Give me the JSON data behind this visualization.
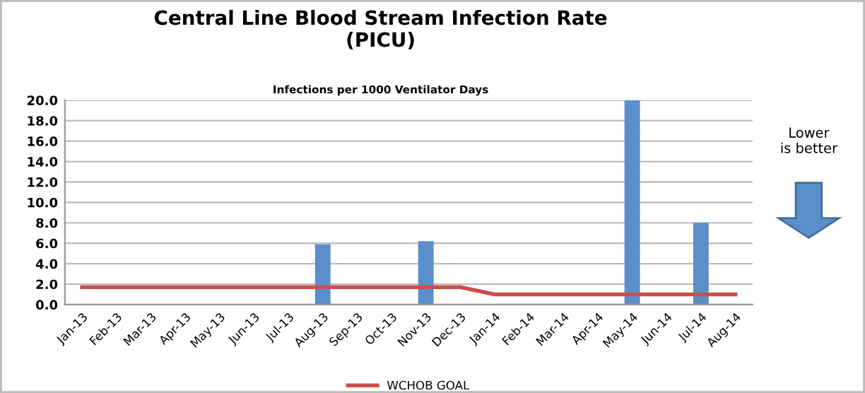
{
  "chart_data": {
    "type": "bar",
    "title": "Central Line Blood Stream Infection Rate\n(PICU)",
    "subtitle": "Infections per 1000 Ventilator Days",
    "categories": [
      "Jan-13",
      "Feb-13",
      "Mar-13",
      "Apr-13",
      "May-13",
      "Jun-13",
      "Jul-13",
      "Aug-13",
      "Sep-13",
      "Oct-13",
      "Nov-13",
      "Dec-13",
      "Jan-14",
      "Feb-14",
      "Mar-14",
      "Apr-14",
      "May-14",
      "Jun-14",
      "Jul-14",
      "Aug-14"
    ],
    "series": [
      {
        "color": "#5b8fcb",
        "values": [
          0,
          0,
          0,
          0,
          0,
          0,
          0,
          5.9,
          0,
          0,
          6.2,
          0,
          0,
          0,
          0,
          0,
          20.0,
          0,
          8.0,
          0
        ]
      },
      {
        "type": "line",
        "name": "WCHOB GOAL",
        "color": "#c9504d",
        "values": [
          1.7,
          1.7,
          1.7,
          1.7,
          1.7,
          1.7,
          1.7,
          1.7,
          1.7,
          1.7,
          1.7,
          1.7,
          1.0,
          1.0,
          1.0,
          1.0,
          1.0,
          1.0,
          1.0,
          1.0
        ]
      }
    ],
    "ylim": [
      0,
      20
    ],
    "yticks": [
      {
        "value": 0,
        "label": "0.0"
      },
      {
        "value": 2,
        "label": "2.0"
      },
      {
        "value": 4,
        "label": "4.0"
      },
      {
        "value": 6,
        "label": "6.0"
      },
      {
        "value": 8,
        "label": "8.0"
      },
      {
        "value": 10,
        "label": "10.0"
      },
      {
        "value": 12,
        "label": "12.0"
      },
      {
        "value": 14,
        "label": "14.0"
      },
      {
        "value": 16,
        "label": "16.0"
      },
      {
        "value": 18,
        "label": "18.0"
      },
      {
        "value": 20,
        "label": "20.0"
      }
    ],
    "grid": "y",
    "legend": "bottom",
    "annotations": [
      "Lower\nis better"
    ]
  }
}
